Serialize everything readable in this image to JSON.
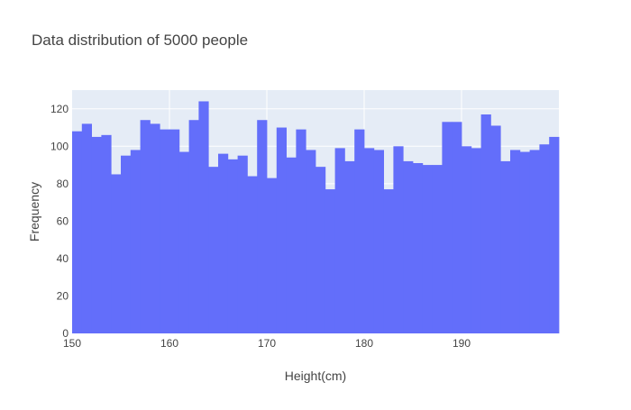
{
  "chart_data": {
    "type": "bar",
    "title": "Data distribution of 5000 people",
    "xlabel": "Height(cm)",
    "ylabel": "Frequency",
    "xlim": [
      150,
      200
    ],
    "ylim": [
      0,
      130
    ],
    "bin_width": 1,
    "bin_start": 150,
    "xticks": [
      150,
      160,
      170,
      180,
      190
    ],
    "yticks": [
      0,
      20,
      40,
      60,
      80,
      100,
      120
    ],
    "grid": true,
    "values": [
      108,
      112,
      105,
      106,
      85,
      95,
      98,
      114,
      112,
      109,
      109,
      97,
      114,
      124,
      89,
      96,
      93,
      95,
      84,
      114,
      83,
      110,
      94,
      109,
      98,
      89,
      77,
      99,
      92,
      109,
      99,
      98,
      77,
      100,
      92,
      91,
      90,
      90,
      113,
      113,
      100,
      99,
      117,
      111,
      92,
      98,
      97,
      98,
      101,
      105
    ]
  },
  "colors": {
    "bar": "#636efa",
    "plot_bg": "#e5ecf6",
    "grid": "#ffffff",
    "text": "#444444",
    "title": "#444444"
  }
}
